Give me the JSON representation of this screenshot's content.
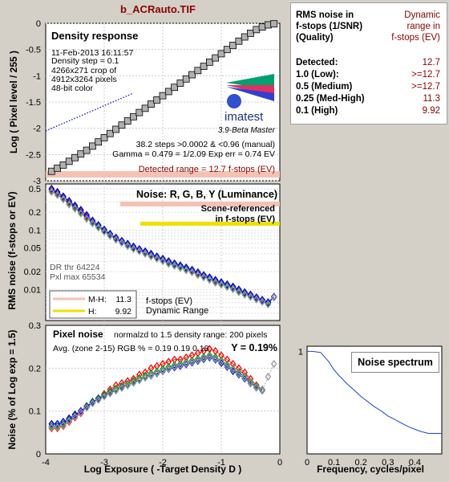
{
  "window_title": "b_ACRauto.TIF",
  "side_panel": {
    "header_left": [
      "RMS noise in",
      "f-stops (1/SNR)",
      "(Quality)"
    ],
    "header_right": [
      "Dynamic",
      "range in",
      "f-stops (EV)"
    ],
    "rows": [
      {
        "label": "Detected:",
        "value": "12.7"
      },
      {
        "label": "1.0  (Low):",
        "value": ">=12.7"
      },
      {
        "label": "0.5  (Medium)",
        "value": ">=12.7"
      },
      {
        "label": "0.25 (Med-High)",
        "value": "11.3"
      },
      {
        "label": "0.1  (High)",
        "value": "9.92"
      }
    ]
  },
  "colors": {
    "background": "#d4d0c8",
    "plot_bg": "#ffffff",
    "accent_red": "#8b0000",
    "pink_band": "#f4c2b4",
    "yellow_band": "#f0e000",
    "square_marker_fill": "#b0b0b0",
    "dotted_line": "#2020cc",
    "spectrum_line": "#2244cc"
  },
  "chart_data": [
    {
      "type": "line",
      "title": "Density response",
      "xlabel": "",
      "ylabel": "Log ( Pixel level / 255 )",
      "xlim": [
        -4,
        0
      ],
      "ylim": [
        -3,
        0
      ],
      "yticks": [
        "0",
        "-0.5",
        "-1",
        "-1.5",
        "-2",
        "-2.5",
        "-3"
      ],
      "info": [
        "11-Feb-2013 16:11:57",
        "4266x271 crop of",
        "4912x3264 pixels",
        "48-bit color",
        "Density step = 0.1"
      ],
      "logo_text": "imatest",
      "version_text": "3.9-Beta  Master",
      "stats": [
        "38.2 steps >0.0002 & <0.96 (manual)",
        "Gamma = 0.479 = 1/2.09  Exp err = 0.74 EV"
      ],
      "range_text": "Detected range = 12.7 f-stops (EV)",
      "series": [
        {
          "name": "",
          "marker": "square",
          "x": [
            -3.9,
            -3.8,
            -3.7,
            -3.6,
            -3.5,
            -3.4,
            -3.3,
            -3.2,
            -3.1,
            -3.0,
            -2.9,
            -2.8,
            -2.7,
            -2.6,
            -2.5,
            -2.4,
            -2.3,
            -2.2,
            -2.1,
            -2.0,
            -1.9,
            -1.8,
            -1.7,
            -1.6,
            -1.5,
            -1.4,
            -1.3,
            -1.2,
            -1.1,
            -1.0,
            -0.9,
            -0.8,
            -0.7,
            -0.6,
            -0.5,
            -0.4,
            -0.3,
            -0.2,
            -0.1
          ],
          "y": [
            -2.82,
            -2.76,
            -2.7,
            -2.63,
            -2.56,
            -2.49,
            -2.42,
            -2.34,
            -2.26,
            -2.18,
            -2.1,
            -2.02,
            -1.94,
            -1.86,
            -1.78,
            -1.7,
            -1.62,
            -1.54,
            -1.46,
            -1.38,
            -1.3,
            -1.22,
            -1.14,
            -1.06,
            -0.98,
            -0.9,
            -0.82,
            -0.74,
            -0.66,
            -0.58,
            -0.5,
            -0.42,
            -0.34,
            -0.26,
            -0.19,
            -0.12,
            -0.07,
            -0.03,
            -0.01
          ]
        }
      ],
      "reference_line": {
        "x": [
          -4,
          -2.5
        ],
        "y": [
          -2.05,
          -1.33
        ],
        "style": "dotted"
      }
    },
    {
      "type": "line",
      "title": "Noise: R, G, B, Y (Luminance)",
      "xlabel": "",
      "ylabel": "RMS noise (f-stops or EV)",
      "yscale": "log",
      "ytick_labels": [
        "0.5",
        "0.2",
        "0.1",
        "0.05",
        "0.02",
        "0.01"
      ],
      "xlim": [
        -4,
        0
      ],
      "annotation": [
        "Scene-referenced",
        "in f-stops (EV)"
      ],
      "dr_text": [
        "DR thr 64224",
        "Pxl max 65534"
      ],
      "legend": [
        {
          "label": "M-H:",
          "value": "11.3",
          "color": "#f4c2b4"
        },
        {
          "label": "H:",
          "value": "9.92",
          "color": "#f0e000"
        }
      ],
      "legend_note": [
        "f-stops (EV)",
        "Dynamic Range"
      ],
      "series": [
        {
          "name": "R",
          "x": [
            -3.9,
            -3.8,
            -3.7,
            -3.6,
            -3.5,
            -3.4,
            -3.3,
            -3.2,
            -3.1,
            -3.0,
            -2.9,
            -2.8,
            -2.7,
            -2.6,
            -2.5,
            -2.4,
            -2.3,
            -2.2,
            -2.1,
            -2.0,
            -1.9,
            -1.8,
            -1.7,
            -1.6,
            -1.5,
            -1.4,
            -1.3,
            -1.2,
            -1.1,
            -1.0,
            -0.9,
            -0.8,
            -0.7,
            -0.6,
            -0.5,
            -0.4,
            -0.3,
            -0.2,
            -0.1
          ],
          "y": [
            0.48,
            0.42,
            0.36,
            0.3,
            0.25,
            0.21,
            0.17,
            0.14,
            0.12,
            0.1,
            0.085,
            0.073,
            0.065,
            0.058,
            0.052,
            0.047,
            0.043,
            0.039,
            0.035,
            0.032,
            0.029,
            0.027,
            0.025,
            0.023,
            0.021,
            0.019,
            0.017,
            0.016,
            0.014,
            0.013,
            0.012,
            0.011,
            0.0098,
            0.0088,
            0.008,
            0.0072,
            0.0066,
            0.006,
            0.0075
          ]
        },
        {
          "name": "G",
          "x": [
            -3.9,
            -3.8,
            -3.7,
            -3.6,
            -3.5,
            -3.4,
            -3.3,
            -3.2,
            -3.1,
            -3.0,
            -2.9,
            -2.8,
            -2.7,
            -2.6,
            -2.5,
            -2.4,
            -2.3,
            -2.2,
            -2.1,
            -2.0,
            -1.9,
            -1.8,
            -1.7,
            -1.6,
            -1.5,
            -1.4,
            -1.3,
            -1.2,
            -1.1,
            -1.0,
            -0.9,
            -0.8,
            -0.7,
            -0.6,
            -0.5,
            -0.4,
            -0.3,
            -0.2,
            -0.1
          ],
          "y": [
            0.45,
            0.4,
            0.34,
            0.28,
            0.24,
            0.2,
            0.16,
            0.135,
            0.115,
            0.097,
            0.083,
            0.071,
            0.063,
            0.056,
            0.05,
            0.045,
            0.041,
            0.037,
            0.034,
            0.031,
            0.028,
            0.026,
            0.024,
            0.022,
            0.02,
            0.018,
            0.0165,
            0.015,
            0.0135,
            0.0125,
            0.0115,
            0.0105,
            0.0094,
            0.0085,
            0.0077,
            0.007,
            0.0064,
            0.0058,
            0.0075
          ]
        },
        {
          "name": "B",
          "x": [
            -3.9,
            -3.8,
            -3.7,
            -3.6,
            -3.5,
            -3.4,
            -3.3,
            -3.2,
            -3.1,
            -3.0,
            -2.9,
            -2.8,
            -2.7,
            -2.6,
            -2.5,
            -2.4,
            -2.3,
            -2.2,
            -2.1,
            -2.0,
            -1.9,
            -1.8,
            -1.7,
            -1.6,
            -1.5,
            -1.4,
            -1.3,
            -1.2,
            -1.1,
            -1.0,
            -0.9,
            -0.8,
            -0.7,
            -0.6,
            -0.5,
            -0.4,
            -0.3,
            -0.2,
            -0.1
          ],
          "y": [
            0.5,
            0.44,
            0.37,
            0.31,
            0.26,
            0.22,
            0.18,
            0.145,
            0.122,
            0.102,
            0.087,
            0.075,
            0.066,
            0.059,
            0.053,
            0.048,
            0.044,
            0.04,
            0.036,
            0.033,
            0.03,
            0.0275,
            0.0255,
            0.0235,
            0.0215,
            0.0195,
            0.0175,
            0.016,
            0.0145,
            0.0133,
            0.0122,
            0.0112,
            0.01,
            0.009,
            0.0082,
            0.0074,
            0.0067,
            0.0061,
            0.0075
          ]
        },
        {
          "name": "Y",
          "x": [
            -3.9,
            -3.8,
            -3.7,
            -3.6,
            -3.5,
            -3.4,
            -3.3,
            -3.2,
            -3.1,
            -3.0,
            -2.9,
            -2.8,
            -2.7,
            -2.6,
            -2.5,
            -2.4,
            -2.3,
            -2.2,
            -2.1,
            -2.0,
            -1.9,
            -1.8,
            -1.7,
            -1.6,
            -1.5,
            -1.4,
            -1.3,
            -1.2,
            -1.1,
            -1.0,
            -0.9,
            -0.8,
            -0.7,
            -0.6,
            -0.5,
            -0.4,
            -0.3,
            -0.2,
            -0.1
          ],
          "y": [
            0.44,
            0.39,
            0.33,
            0.27,
            0.23,
            0.19,
            0.155,
            0.13,
            0.11,
            0.094,
            0.08,
            0.069,
            0.061,
            0.054,
            0.048,
            0.044,
            0.04,
            0.036,
            0.033,
            0.03,
            0.027,
            0.025,
            0.023,
            0.021,
            0.0195,
            0.0175,
            0.016,
            0.0145,
            0.013,
            0.012,
            0.011,
            0.0101,
            0.009,
            0.0082,
            0.0075,
            0.0068,
            0.0062,
            0.0056,
            0.0073
          ]
        }
      ]
    },
    {
      "type": "line",
      "title": "Pixel noise",
      "subtitle": "normalzd to 1.5 density range: 200 pixels",
      "avg_text": "Avg. (zone 2-15) RGB % = 0.19  0.19  0.18;",
      "y_result": "Y = 0.19%",
      "xlabel": "Log Exposure ( -Target Density D )",
      "ylabel": "Noise (% of Log exp = 1.5)",
      "xlim": [
        -4,
        0
      ],
      "ylim": [
        0,
        0.3
      ],
      "xticks": [
        "-4",
        "-3",
        "-2",
        "-1",
        "0"
      ],
      "yticks": [
        "0",
        "0.1",
        "0.2",
        "0.3"
      ],
      "series": [
        {
          "name": "R",
          "x": [
            -3.9,
            -3.8,
            -3.7,
            -3.6,
            -3.5,
            -3.4,
            -3.3,
            -3.2,
            -3.1,
            -3.0,
            -2.9,
            -2.8,
            -2.7,
            -2.6,
            -2.5,
            -2.4,
            -2.3,
            -2.2,
            -2.1,
            -2.0,
            -1.9,
            -1.8,
            -1.7,
            -1.6,
            -1.5,
            -1.4,
            -1.3,
            -1.2,
            -1.1,
            -1.0,
            -0.9,
            -0.8,
            -0.7,
            -0.6,
            -0.5,
            -0.4,
            -0.3
          ],
          "y": [
            0.06,
            0.06,
            0.065,
            0.075,
            0.085,
            0.095,
            0.11,
            0.12,
            0.13,
            0.14,
            0.15,
            0.16,
            0.165,
            0.17,
            0.175,
            0.185,
            0.19,
            0.2,
            0.205,
            0.21,
            0.215,
            0.22,
            0.22,
            0.225,
            0.23,
            0.235,
            0.24,
            0.245,
            0.24,
            0.23,
            0.22,
            0.21,
            0.2,
            0.19,
            0.175,
            0.16,
            0.15
          ]
        },
        {
          "name": "G",
          "x": [
            -3.9,
            -3.8,
            -3.7,
            -3.6,
            -3.5,
            -3.4,
            -3.3,
            -3.2,
            -3.1,
            -3.0,
            -2.9,
            -2.8,
            -2.7,
            -2.6,
            -2.5,
            -2.4,
            -2.3,
            -2.2,
            -2.1,
            -2.0,
            -1.9,
            -1.8,
            -1.7,
            -1.6,
            -1.5,
            -1.4,
            -1.3,
            -1.2,
            -1.1,
            -1.0,
            -0.9,
            -0.8,
            -0.7,
            -0.6,
            -0.5,
            -0.4,
            -0.3
          ],
          "y": [
            0.065,
            0.065,
            0.07,
            0.08,
            0.09,
            0.1,
            0.112,
            0.122,
            0.13,
            0.138,
            0.145,
            0.152,
            0.158,
            0.163,
            0.17,
            0.176,
            0.182,
            0.188,
            0.192,
            0.198,
            0.203,
            0.207,
            0.21,
            0.214,
            0.218,
            0.222,
            0.226,
            0.23,
            0.226,
            0.218,
            0.208,
            0.198,
            0.19,
            0.18,
            0.168,
            0.158,
            0.15
          ]
        },
        {
          "name": "B",
          "x": [
            -3.9,
            -3.8,
            -3.7,
            -3.6,
            -3.5,
            -3.4,
            -3.3,
            -3.2,
            -3.1,
            -3.0,
            -2.9,
            -2.8,
            -2.7,
            -2.6,
            -2.5,
            -2.4,
            -2.3,
            -2.2,
            -2.1,
            -2.0,
            -1.9,
            -1.8,
            -1.7,
            -1.6,
            -1.5,
            -1.4,
            -1.3,
            -1.2,
            -1.1,
            -1.0,
            -0.9,
            -0.8,
            -0.7,
            -0.6,
            -0.5,
            -0.4,
            -0.3
          ],
          "y": [
            0.07,
            0.07,
            0.075,
            0.083,
            0.092,
            0.1,
            0.11,
            0.12,
            0.128,
            0.135,
            0.142,
            0.148,
            0.155,
            0.16,
            0.166,
            0.172,
            0.178,
            0.183,
            0.188,
            0.193,
            0.198,
            0.202,
            0.205,
            0.209,
            0.213,
            0.217,
            0.221,
            0.225,
            0.22,
            0.212,
            0.203,
            0.193,
            0.185,
            0.176,
            0.165,
            0.155,
            0.148
          ]
        },
        {
          "name": "Y",
          "x": [
            -3.9,
            -3.8,
            -3.7,
            -3.6,
            -3.5,
            -3.4,
            -3.3,
            -3.2,
            -3.1,
            -3.0,
            -2.9,
            -2.8,
            -2.7,
            -2.6,
            -2.5,
            -2.4,
            -2.3,
            -2.2,
            -2.1,
            -2.0,
            -1.9,
            -1.8,
            -1.7,
            -1.6,
            -1.5,
            -1.4,
            -1.3,
            -1.2,
            -1.1,
            -1.0,
            -0.9,
            -0.8,
            -0.7,
            -0.6,
            -0.5,
            -0.4,
            -0.3,
            -0.2,
            -0.1
          ],
          "y": [
            0.062,
            0.062,
            0.067,
            0.077,
            0.087,
            0.097,
            0.108,
            0.118,
            0.126,
            0.134,
            0.141,
            0.148,
            0.154,
            0.16,
            0.166,
            0.172,
            0.178,
            0.184,
            0.189,
            0.194,
            0.199,
            0.204,
            0.207,
            0.211,
            0.215,
            0.219,
            0.223,
            0.227,
            0.222,
            0.215,
            0.205,
            0.196,
            0.187,
            0.178,
            0.166,
            0.156,
            0.149,
            0.18,
            0.21
          ]
        }
      ]
    },
    {
      "type": "line",
      "title": "Noise spectrum",
      "xlabel": "Frequency, cycles/pixel",
      "ylabel": "",
      "xlim": [
        0,
        0.5
      ],
      "ylim": [
        0,
        1
      ],
      "xticks": [
        "0",
        "0.1",
        "0.2",
        "0.3",
        "0.4"
      ],
      "yticks": [
        "1"
      ],
      "series": [
        {
          "name": "",
          "x": [
            0.0,
            0.02,
            0.05,
            0.08,
            0.1,
            0.12,
            0.15,
            0.18,
            0.2,
            0.23,
            0.25,
            0.28,
            0.3,
            0.33,
            0.35,
            0.38,
            0.4,
            0.42,
            0.45,
            0.48,
            0.5
          ],
          "y": [
            1.0,
            1.0,
            0.99,
            0.9,
            0.82,
            0.76,
            0.68,
            0.61,
            0.56,
            0.5,
            0.46,
            0.41,
            0.37,
            0.33,
            0.3,
            0.26,
            0.24,
            0.22,
            0.2,
            0.2,
            0.2
          ]
        }
      ]
    }
  ]
}
